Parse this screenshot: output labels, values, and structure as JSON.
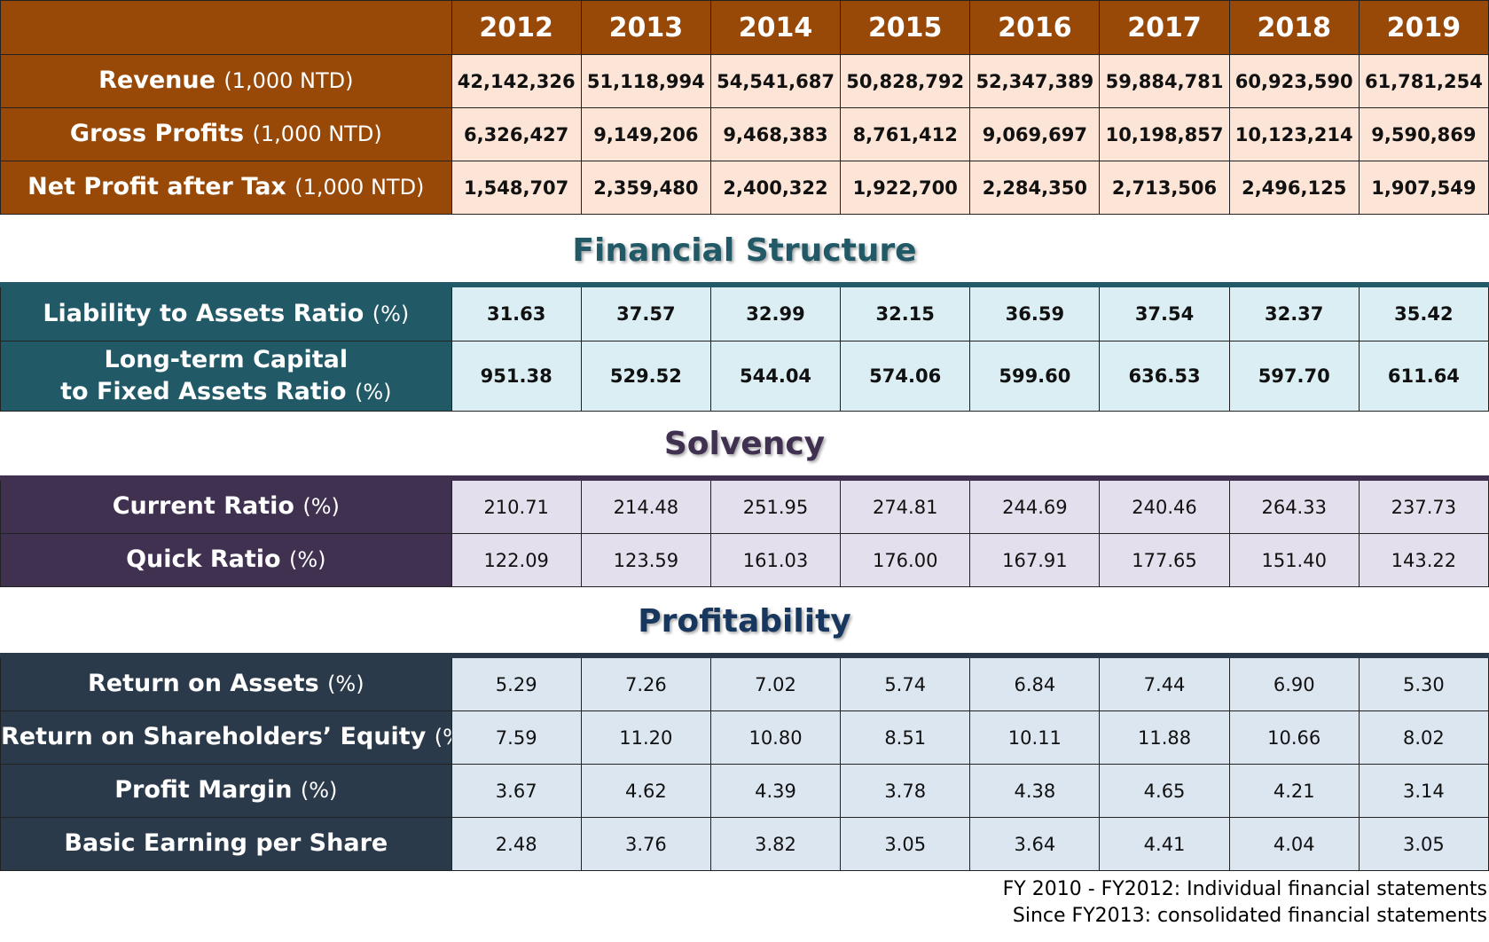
{
  "chart_data": {
    "type": "table",
    "years": [
      "2012",
      "2013",
      "2014",
      "2015",
      "2016",
      "2017",
      "2018",
      "2019"
    ],
    "sections": [
      {
        "id": "income",
        "title": "",
        "rows": [
          {
            "label": "Revenue",
            "unit": "(1,000 NTD)",
            "values": [
              "42,142,326",
              "51,118,994",
              "54,541,687",
              "50,828,792",
              "52,347,389",
              "59,884,781",
              "60,923,590",
              "61,781,254"
            ]
          },
          {
            "label": "Gross Profits",
            "unit": "(1,000 NTD)",
            "values": [
              "6,326,427",
              "9,149,206",
              "9,468,383",
              "8,761,412",
              "9,069,697",
              "10,198,857",
              "10,123,214",
              "9,590,869"
            ]
          },
          {
            "label": "Net Profit after Tax",
            "unit": "(1,000 NTD)",
            "values": [
              "1,548,707",
              "2,359,480",
              "2,400,322",
              "1,922,700",
              "2,284,350",
              "2,713,506",
              "2,496,125",
              "1,907,549"
            ]
          }
        ]
      },
      {
        "id": "financial_structure",
        "title": "Financial Structure",
        "rows": [
          {
            "label": "Liability to Assets Ratio",
            "unit": "(%)",
            "values": [
              "31.63",
              "37.57",
              "32.99",
              "32.15",
              "36.59",
              "37.54",
              "32.37",
              "35.42"
            ]
          },
          {
            "label_line1": "Long-term Capital",
            "label": "to Fixed Assets Ratio",
            "unit": "(%)",
            "values": [
              "951.38",
              "529.52",
              "544.04",
              "574.06",
              "599.60",
              "636.53",
              "597.70",
              "611.64"
            ]
          }
        ]
      },
      {
        "id": "solvency",
        "title": "Solvency",
        "rows": [
          {
            "label": "Current Ratio",
            "unit": "(%)",
            "values": [
              "210.71",
              "214.48",
              "251.95",
              "274.81",
              "244.69",
              "240.46",
              "264.33",
              "237.73"
            ]
          },
          {
            "label": "Quick Ratio",
            "unit": "(%)",
            "values": [
              "122.09",
              "123.59",
              "161.03",
              "176.00",
              "167.91",
              "177.65",
              "151.40",
              "143.22"
            ]
          }
        ]
      },
      {
        "id": "profitability",
        "title": "Profitability",
        "rows": [
          {
            "label": "Return on Assets",
            "unit": "(%)",
            "values": [
              "5.29",
              "7.26",
              "7.02",
              "5.74",
              "6.84",
              "7.44",
              "6.90",
              "5.30"
            ]
          },
          {
            "label": "Return on Shareholders’ Equity",
            "unit": "(%)",
            "values": [
              "7.59",
              "11.20",
              "10.80",
              "8.51",
              "10.11",
              "11.88",
              "10.66",
              "8.02"
            ]
          },
          {
            "label": "Profit Margin",
            "unit": "(%)",
            "values": [
              "3.67",
              "4.62",
              "4.39",
              "3.78",
              "4.38",
              "4.65",
              "4.21",
              "3.14"
            ]
          },
          {
            "label": "Basic Earning per Share",
            "unit": "",
            "values": [
              "2.48",
              "3.76",
              "3.82",
              "3.05",
              "3.64",
              "4.41",
              "4.04",
              "3.05"
            ]
          }
        ]
      }
    ],
    "notes": [
      "FY 2010 - FY2012: Individual financial statements",
      "Since FY2013: consolidated financial statements"
    ]
  },
  "colors": {
    "income_header": "#984807",
    "income_cells": "#fce4d6",
    "financial_header": "#215967",
    "financial_cells": "#daeef3",
    "solvency_header": "#403151",
    "solvency_cells": "#e4dfec",
    "profitability_header": "#2b3a4a",
    "profitability_cells": "#dce6f1"
  }
}
